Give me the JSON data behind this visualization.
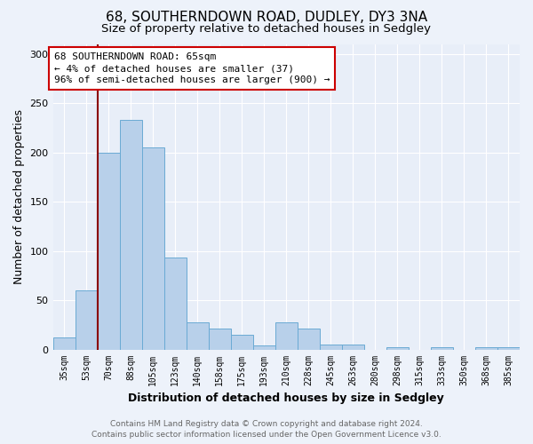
{
  "title": "68, SOUTHERNDOWN ROAD, DUDLEY, DY3 3NA",
  "subtitle": "Size of property relative to detached houses in Sedgley",
  "xlabel": "Distribution of detached houses by size in Sedgley",
  "ylabel": "Number of detached properties",
  "categories": [
    "35sqm",
    "53sqm",
    "70sqm",
    "88sqm",
    "105sqm",
    "123sqm",
    "140sqm",
    "158sqm",
    "175sqm",
    "193sqm",
    "210sqm",
    "228sqm",
    "245sqm",
    "263sqm",
    "280sqm",
    "298sqm",
    "315sqm",
    "333sqm",
    "350sqm",
    "368sqm",
    "385sqm"
  ],
  "values": [
    12,
    60,
    200,
    233,
    205,
    93,
    28,
    21,
    15,
    4,
    28,
    21,
    5,
    5,
    0,
    2,
    0,
    2,
    0,
    2,
    2
  ],
  "bar_color": "#b8d0ea",
  "bar_edge_color": "#6aaad4",
  "redline_index": 2,
  "ylim": [
    0,
    310
  ],
  "yticks": [
    0,
    50,
    100,
    150,
    200,
    250,
    300
  ],
  "annotation_title": "68 SOUTHERNDOWN ROAD: 65sqm",
  "annotation_line1": "← 4% of detached houses are smaller (37)",
  "annotation_line2": "96% of semi-detached houses are larger (900) →",
  "footer_line1": "Contains HM Land Registry data © Crown copyright and database right 2024.",
  "footer_line2": "Contains public sector information licensed under the Open Government Licence v3.0.",
  "background_color": "#edf2fa",
  "plot_background": "#e8eef8",
  "grid_color": "#ffffff",
  "title_fontsize": 11,
  "subtitle_fontsize": 9.5,
  "axis_label_fontsize": 9,
  "tick_fontsize": 7,
  "footer_fontsize": 6.5,
  "annotation_fontsize": 8
}
